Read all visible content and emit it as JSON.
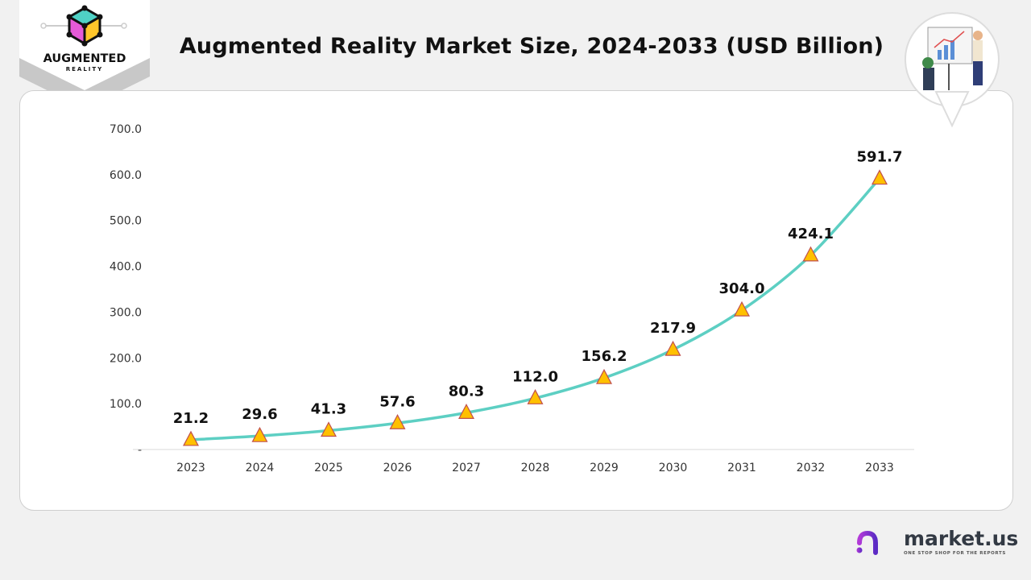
{
  "header": {
    "title": "Augmented Reality Market Size, 2024-2033 (USD Billion)"
  },
  "logo": {
    "line1": "AUGMENTED",
    "line2": "REALITY"
  },
  "brand": {
    "name": "market.us",
    "tagline": "ONE STOP SHOP FOR THE REPORTS"
  },
  "colors": {
    "line": "#5dcfc3",
    "marker_fill": "#ffc000",
    "marker_stroke": "#c0504d",
    "accent": "#7a2fd0"
  },
  "chart_data": {
    "type": "line",
    "title": "Augmented Reality Market Size, 2024-2033 (USD Billion)",
    "xlabel": "",
    "ylabel": "",
    "categories": [
      "2023",
      "2024",
      "2025",
      "2026",
      "2027",
      "2028",
      "2029",
      "2030",
      "2031",
      "2032",
      "2033"
    ],
    "values": [
      21.2,
      29.6,
      41.3,
      57.6,
      80.3,
      112.0,
      156.2,
      217.9,
      304.0,
      424.1,
      591.7
    ],
    "data_labels": [
      "21.2",
      "29.6",
      "41.3",
      "57.6",
      "80.3",
      "112.0",
      "156.2",
      "217.9",
      "304.0",
      "424.1",
      "591.7"
    ],
    "ylim": [
      0,
      700
    ],
    "y_ticks": [
      "-",
      "100.0",
      "200.0",
      "300.0",
      "400.0",
      "500.0",
      "600.0",
      "700.0"
    ],
    "y_tick_values": [
      0,
      100,
      200,
      300,
      400,
      500,
      600,
      700
    ],
    "grid": false,
    "marker": "triangle",
    "smooth": true,
    "legend": "none"
  }
}
